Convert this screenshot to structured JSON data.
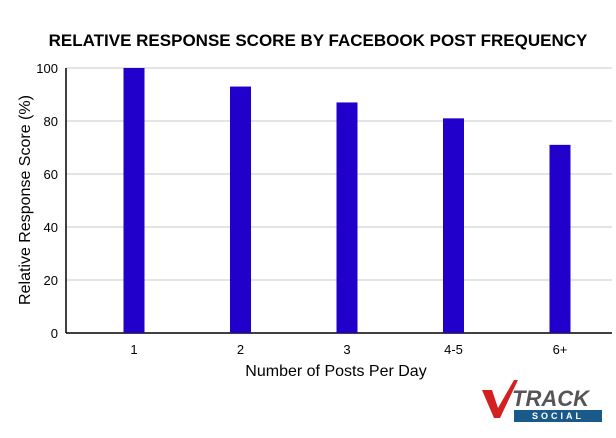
{
  "chart_data": {
    "type": "bar",
    "title": "RELATIVE RESPONSE SCORE BY FACEBOOK POST FREQUENCY",
    "xlabel": "Number of Posts Per Day",
    "ylabel": "Relative Response Score (%)",
    "categories": [
      "1",
      "2",
      "3",
      "4-5",
      "6+"
    ],
    "values": [
      100,
      93,
      87,
      81,
      71
    ],
    "ylim": [
      0,
      100
    ],
    "yticks": [
      0,
      20,
      40,
      60,
      80,
      100
    ],
    "grid": true,
    "bar_color": "#2200cc",
    "grid_color": "#c8c8c8"
  },
  "logo": {
    "brand_main": "TRACK",
    "brand_sub": "SOCIAL",
    "accent_color": "#d32020",
    "secondary_color": "#555555",
    "sub_bg_color": "#1a5a8a"
  }
}
